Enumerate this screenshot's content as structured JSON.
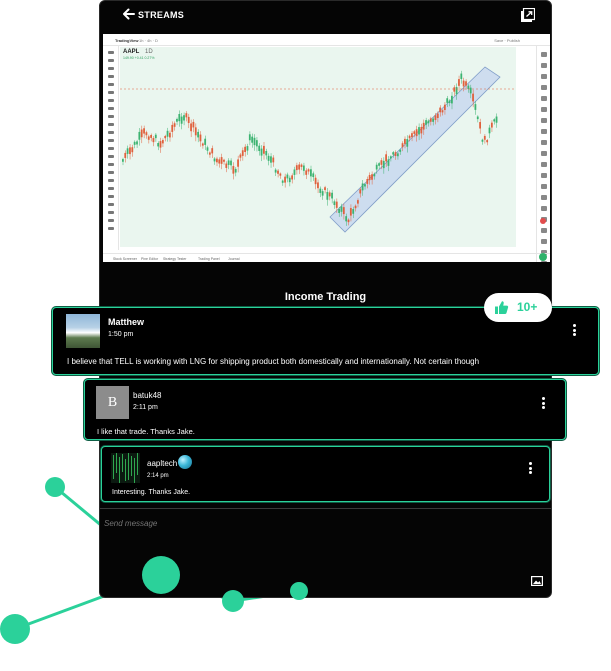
{
  "header": {
    "title": "STREAMS"
  },
  "chart_image": {
    "brand": "TradingView",
    "symbol": "AAPL",
    "timeframe": "1D",
    "price": "149.90 +0.41 0.27%",
    "toolbar_tf": "1h · 4h · D",
    "toolbar_right": "Save · Publish",
    "bottom_items": [
      "Stock Screener",
      "Pine Editor",
      "Strategy Tester",
      "Trading Panel",
      "Journal"
    ],
    "accent_color": "#2a9d5c",
    "channel_color": "#c9d9ef"
  },
  "thread": {
    "title": "Income Trading",
    "likes": "10+",
    "comments": [
      {
        "author": "Matthew",
        "time": "1:50 pm",
        "text": "I believe that TELL is working with LNG for shipping product both domestically and internationally. Not certain though",
        "avatar": "landscape-photo"
      },
      {
        "author": "batuk48",
        "time": "2:11 pm",
        "text": "I like that trade. Thanks Jake.",
        "avatar_letter": "B"
      },
      {
        "author": "aapltech",
        "time": "2:14 pm",
        "text": "Interesting.  Thanks Jake.",
        "avatar": "matrix-pattern"
      }
    ]
  },
  "composer": {
    "placeholder": "Send message"
  },
  "colors": {
    "accent": "#2bd19a",
    "background": "#050505"
  }
}
